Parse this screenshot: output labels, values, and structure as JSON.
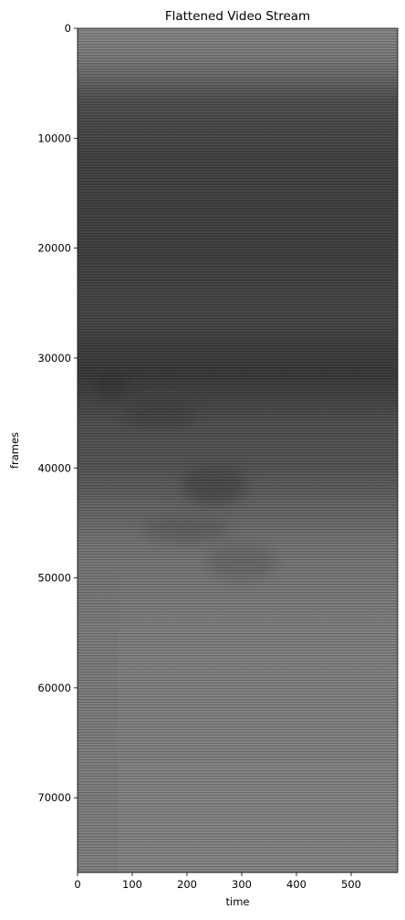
{
  "chart_data": {
    "type": "heatmap",
    "title": "Flattened Video Stream",
    "xlabel": "time",
    "ylabel": "frames",
    "xlim": [
      0,
      585
    ],
    "ylim": [
      76800,
      0
    ],
    "xticks": [
      0,
      100,
      200,
      300,
      400,
      500
    ],
    "yticks": [
      0,
      10000,
      20000,
      30000,
      40000,
      50000,
      60000,
      70000
    ],
    "colormap": "grayscale",
    "grid": false,
    "legend": "none",
    "background_profile": [
      {
        "frames": 0,
        "gray": "#8c8c8c"
      },
      {
        "frames": 3000,
        "gray": "#7e7e7e"
      },
      {
        "frames": 6500,
        "gray": "#545454"
      },
      {
        "frames": 12000,
        "gray": "#474747"
      },
      {
        "frames": 20000,
        "gray": "#444444"
      },
      {
        "frames": 26000,
        "gray": "#4b4b4b"
      },
      {
        "frames": 31500,
        "gray": "#3e3e3e"
      },
      {
        "frames": 36000,
        "gray": "#555555"
      },
      {
        "frames": 40000,
        "gray": "#5a5a5a"
      },
      {
        "frames": 44500,
        "gray": "#6e6e6e"
      },
      {
        "frames": 47000,
        "gray": "#7a7a7a"
      },
      {
        "frames": 55000,
        "gray": "#858585"
      },
      {
        "frames": 65000,
        "gray": "#878787"
      },
      {
        "frames": 76800,
        "gray": "#8a8a8a"
      }
    ],
    "dark_blobs": [
      {
        "time": 60,
        "frames": 32200,
        "width": 60,
        "height": 2500,
        "gray": "#383838"
      },
      {
        "time": 150,
        "frames": 35000,
        "width": 140,
        "height": 2500,
        "gray": "#444444"
      },
      {
        "time": 250,
        "frames": 41500,
        "width": 120,
        "height": 3500,
        "gray": "#4a4a4a"
      },
      {
        "time": 200,
        "frames": 45500,
        "width": 160,
        "height": 2500,
        "gray": "#616161"
      },
      {
        "time": 300,
        "frames": 48500,
        "width": 130,
        "height": 3500,
        "gray": "#6c6c6c"
      }
    ],
    "left_band": {
      "time_start": 0,
      "time_end": 75,
      "gray": "#7a7a7a"
    }
  }
}
